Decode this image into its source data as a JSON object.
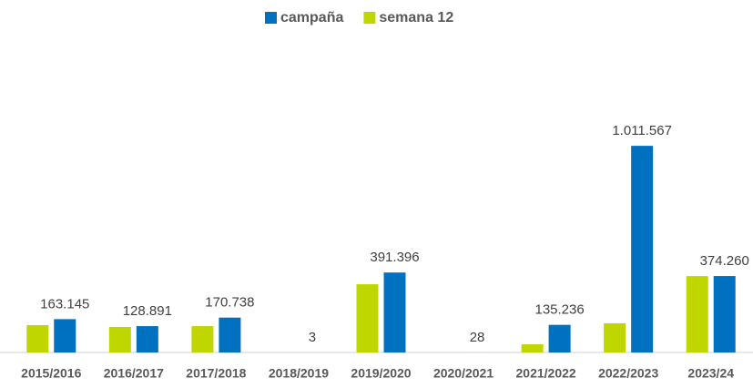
{
  "chart_data": {
    "type": "bar",
    "categories": [
      "2015/2016",
      "2016/2017",
      "2017/2018",
      "2018/2019",
      "2019/2020",
      "2020/2021",
      "2021/2022",
      "2022/2023",
      "2023/24"
    ],
    "series": [
      {
        "name": "campaña",
        "color": "#0070c0",
        "values": [
          163145,
          128891,
          170738,
          3,
          391396,
          28,
          135236,
          1011567,
          374260
        ],
        "value_labels": [
          "163.145",
          "128.891",
          "170.738",
          "3",
          "391.396",
          "28",
          "135.236",
          "1.011.567",
          "374.260"
        ]
      },
      {
        "name": "semana 12",
        "color": "#c0d600",
        "values": [
          134000,
          125000,
          129000,
          0,
          334000,
          0,
          40000,
          143000,
          374000
        ]
      }
    ],
    "ylim": [
      0,
      1400000
    ],
    "legend": "top"
  }
}
